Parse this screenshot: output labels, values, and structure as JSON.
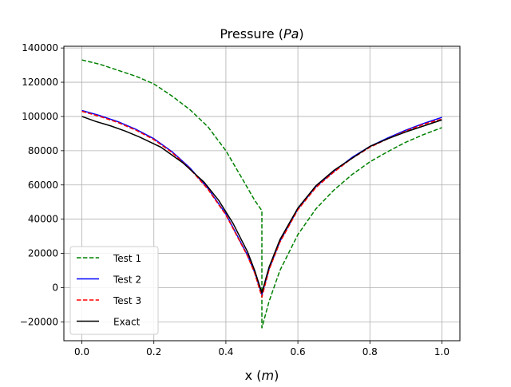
{
  "chart_data": {
    "type": "line",
    "title": "Pressure (Pa)",
    "title_parts": [
      {
        "text": "Pressure (",
        "italic": false
      },
      {
        "text": "Pa",
        "italic": true
      },
      {
        "text": ")",
        "italic": false
      }
    ],
    "xlabel": "x (m)",
    "xlabel_parts": [
      {
        "text": "x (",
        "italic": false
      },
      {
        "text": "m",
        "italic": true
      },
      {
        "text": ")",
        "italic": false
      }
    ],
    "ylabel": "",
    "xlim": [
      -0.05,
      1.05
    ],
    "ylim": [
      -31000,
      141000
    ],
    "xticks": [
      0.0,
      0.2,
      0.4,
      0.6,
      0.8,
      1.0
    ],
    "xtick_labels": [
      "0.0",
      "0.2",
      "0.4",
      "0.6",
      "0.8",
      "1.0"
    ],
    "yticks": [
      -20000,
      0,
      20000,
      40000,
      60000,
      80000,
      100000,
      120000,
      140000
    ],
    "ytick_labels": [
      "−20000",
      "0",
      "20000",
      "40000",
      "60000",
      "80000",
      "100000",
      "120000",
      "140000"
    ],
    "grid": true,
    "legend_position": "lower-left",
    "series": [
      {
        "name": "Test 1",
        "color": "#008000",
        "dash": "dashed",
        "x": [
          0.0,
          0.05,
          0.1,
          0.15,
          0.2,
          0.25,
          0.3,
          0.35,
          0.4,
          0.45,
          0.48,
          0.5,
          0.5,
          0.52,
          0.55,
          0.6,
          0.65,
          0.7,
          0.75,
          0.8,
          0.85,
          0.9,
          0.95,
          1.0
        ],
        "y": [
          133000,
          130500,
          127000,
          123500,
          119000,
          112000,
          104000,
          94000,
          80000,
          62000,
          51000,
          45000,
          -23500,
          -8000,
          10000,
          31000,
          46000,
          57000,
          66000,
          73500,
          79500,
          85000,
          89500,
          93500
        ]
      },
      {
        "name": "Test 2",
        "color": "#0000ff",
        "dash": "solid",
        "x": [
          0.0,
          0.05,
          0.1,
          0.15,
          0.2,
          0.25,
          0.3,
          0.35,
          0.4,
          0.43,
          0.46,
          0.48,
          0.5,
          0.52,
          0.55,
          0.6,
          0.65,
          0.7,
          0.75,
          0.8,
          0.85,
          0.9,
          0.95,
          1.0
        ],
        "y": [
          103500,
          100500,
          97000,
          92500,
          87000,
          79500,
          70000,
          58000,
          43000,
          31000,
          19000,
          9000,
          -4000,
          11000,
          27000,
          46000,
          59000,
          68000,
          76000,
          82500,
          87500,
          92000,
          96000,
          99500
        ]
      },
      {
        "name": "Test 3",
        "color": "#ff0000",
        "dash": "dashed",
        "x": [
          0.0,
          0.05,
          0.1,
          0.15,
          0.2,
          0.25,
          0.3,
          0.35,
          0.4,
          0.43,
          0.46,
          0.48,
          0.5,
          0.52,
          0.55,
          0.6,
          0.65,
          0.7,
          0.75,
          0.8,
          0.85,
          0.9,
          0.95,
          1.0
        ],
        "y": [
          103000,
          100000,
          96500,
          92000,
          86500,
          79000,
          69500,
          57500,
          42500,
          30500,
          18500,
          8500,
          -5500,
          10500,
          26500,
          45500,
          58500,
          67500,
          75500,
          82000,
          87000,
          91500,
          95500,
          98500
        ]
      },
      {
        "name": "Exact",
        "color": "#000000",
        "dash": "solid",
        "x": [
          0.0,
          0.04,
          0.08,
          0.12,
          0.16,
          0.22,
          0.28,
          0.34,
          0.38,
          0.42,
          0.46,
          0.48,
          0.5,
          0.52,
          0.55,
          0.6,
          0.65,
          0.7,
          0.75,
          0.8,
          0.85,
          0.9,
          0.95,
          1.0
        ],
        "y": [
          100000,
          97000,
          94500,
          91500,
          88000,
          82000,
          73000,
          61500,
          51000,
          37500,
          21000,
          10000,
          -3000,
          12000,
          28000,
          46500,
          59500,
          68500,
          75500,
          82500,
          87000,
          91000,
          94500,
          98000
        ]
      }
    ]
  }
}
